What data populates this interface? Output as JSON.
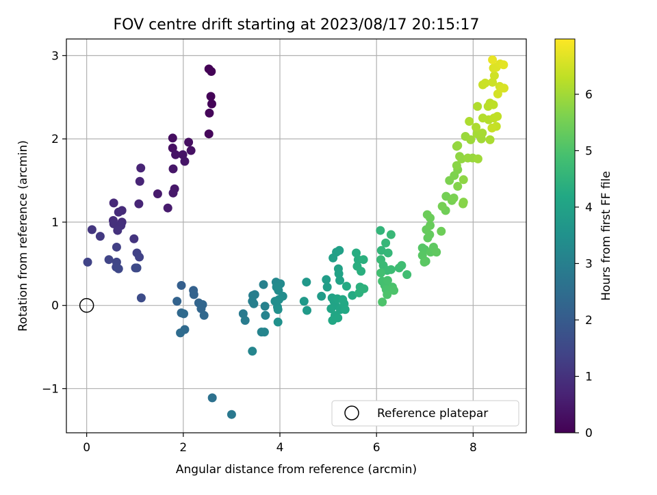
{
  "chart_data": {
    "type": "scatter",
    "title": "FOV centre drift starting at 2023/08/17 20:15:17",
    "xlabel": "Angular distance from reference (arcmin)",
    "ylabel": "Rotation from reference (arcmin)",
    "xlim": [
      -0.42,
      9.1
    ],
    "ylim": [
      -1.53,
      3.2
    ],
    "xticks": [
      0,
      2,
      4,
      6,
      8
    ],
    "yticks": [
      -1,
      0,
      1,
      2,
      3
    ],
    "xtick_labels": [
      "0",
      "2",
      "4",
      "6",
      "8"
    ],
    "ytick_labels": [
      "−1",
      "0",
      "1",
      "2",
      "3"
    ],
    "grid": true,
    "colormap": "viridis",
    "colorbar": {
      "label": "Hours from first FF file",
      "range": [
        0,
        6.98
      ],
      "ticks": [
        0,
        1,
        2,
        3,
        4,
        5,
        6
      ],
      "tick_labels": [
        "0",
        "1",
        "2",
        "3",
        "4",
        "5",
        "6"
      ]
    },
    "legend": {
      "placement": "lower-right",
      "entries": [
        "Reference platepar"
      ]
    },
    "reference_point": {
      "x": 0,
      "y": 0,
      "label": "Reference platepar"
    },
    "series": [
      {
        "points": [
          {
            "x": 2.53,
            "y": 2.84,
            "h": 0.02
          },
          {
            "x": 2.58,
            "y": 2.81,
            "h": 0.04
          },
          {
            "x": 2.57,
            "y": 2.51,
            "h": 0.06
          },
          {
            "x": 2.59,
            "y": 2.42,
            "h": 0.08
          },
          {
            "x": 2.54,
            "y": 2.31,
            "h": 0.1
          },
          {
            "x": 2.53,
            "y": 2.06,
            "h": 0.12
          },
          {
            "x": 1.78,
            "y": 2.01,
            "h": 0.25
          },
          {
            "x": 2.11,
            "y": 1.96,
            "h": 0.28
          },
          {
            "x": 1.78,
            "y": 1.89,
            "h": 0.3
          },
          {
            "x": 2.16,
            "y": 1.86,
            "h": 0.32
          },
          {
            "x": 1.99,
            "y": 1.81,
            "h": 0.35
          },
          {
            "x": 1.84,
            "y": 1.81,
            "h": 0.37
          },
          {
            "x": 2.03,
            "y": 1.73,
            "h": 0.4
          },
          {
            "x": 1.79,
            "y": 1.64,
            "h": 0.42
          },
          {
            "x": 1.82,
            "y": 1.4,
            "h": 0.45
          },
          {
            "x": 1.79,
            "y": 1.35,
            "h": 0.47
          },
          {
            "x": 1.47,
            "y": 1.34,
            "h": 0.5
          },
          {
            "x": 1.68,
            "y": 1.17,
            "h": 0.52
          },
          {
            "x": 1.12,
            "y": 1.65,
            "h": 0.7
          },
          {
            "x": 1.1,
            "y": 1.49,
            "h": 0.72
          },
          {
            "x": 1.08,
            "y": 1.22,
            "h": 0.75
          },
          {
            "x": 0.56,
            "y": 1.23,
            "h": 0.8
          },
          {
            "x": 0.73,
            "y": 1.14,
            "h": 0.85
          },
          {
            "x": 0.66,
            "y": 1.12,
            "h": 0.88
          },
          {
            "x": 0.55,
            "y": 1.02,
            "h": 0.9
          },
          {
            "x": 0.73,
            "y": 1.0,
            "h": 0.92
          },
          {
            "x": 0.56,
            "y": 0.98,
            "h": 0.95
          },
          {
            "x": 0.71,
            "y": 0.96,
            "h": 0.97
          },
          {
            "x": 0.64,
            "y": 0.9,
            "h": 1.0
          },
          {
            "x": 0.98,
            "y": 0.8,
            "h": 1.05
          },
          {
            "x": 0.11,
            "y": 0.91,
            "h": 1.1
          },
          {
            "x": 0.28,
            "y": 0.83,
            "h": 1.15
          },
          {
            "x": 0.62,
            "y": 0.7,
            "h": 1.3
          },
          {
            "x": 1.04,
            "y": 0.63,
            "h": 1.35
          },
          {
            "x": 1.09,
            "y": 0.58,
            "h": 1.38
          },
          {
            "x": 0.02,
            "y": 0.52,
            "h": 1.4
          },
          {
            "x": 0.46,
            "y": 0.55,
            "h": 1.42
          },
          {
            "x": 0.62,
            "y": 0.52,
            "h": 1.45
          },
          {
            "x": 0.61,
            "y": 0.46,
            "h": 1.48
          },
          {
            "x": 0.66,
            "y": 0.44,
            "h": 1.5
          },
          {
            "x": 1.01,
            "y": 0.45,
            "h": 1.52
          },
          {
            "x": 1.04,
            "y": 0.45,
            "h": 1.55
          },
          {
            "x": 1.13,
            "y": 0.09,
            "h": 1.6
          },
          {
            "x": 1.96,
            "y": 0.24,
            "h": 2.1
          },
          {
            "x": 2.21,
            "y": 0.18,
            "h": 2.15
          },
          {
            "x": 2.22,
            "y": 0.13,
            "h": 2.2
          },
          {
            "x": 1.87,
            "y": 0.05,
            "h": 2.2
          },
          {
            "x": 2.32,
            "y": 0.03,
            "h": 2.25
          },
          {
            "x": 2.4,
            "y": 0.01,
            "h": 2.3
          },
          {
            "x": 2.37,
            "y": -0.04,
            "h": 2.3
          },
          {
            "x": 2.43,
            "y": -0.12,
            "h": 2.35
          },
          {
            "x": 1.96,
            "y": -0.09,
            "h": 2.35
          },
          {
            "x": 2.01,
            "y": -0.1,
            "h": 2.4
          },
          {
            "x": 2.03,
            "y": -0.29,
            "h": 2.4
          },
          {
            "x": 1.94,
            "y": -0.33,
            "h": 2.45
          },
          {
            "x": 2.6,
            "y": -1.11,
            "h": 2.6
          },
          {
            "x": 3.0,
            "y": -1.31,
            "h": 2.8
          },
          {
            "x": 3.24,
            "y": -0.1,
            "h": 2.85
          },
          {
            "x": 3.28,
            "y": -0.18,
            "h": 2.9
          },
          {
            "x": 3.44,
            "y": 0.12,
            "h": 2.95
          },
          {
            "x": 3.48,
            "y": 0.13,
            "h": 2.97
          },
          {
            "x": 3.43,
            "y": 0.05,
            "h": 3.0
          },
          {
            "x": 3.46,
            "y": 0.02,
            "h": 3.0
          },
          {
            "x": 3.66,
            "y": 0.25,
            "h": 3.05
          },
          {
            "x": 3.69,
            "y": -0.01,
            "h": 3.05
          },
          {
            "x": 3.7,
            "y": -0.12,
            "h": 3.1
          },
          {
            "x": 3.62,
            "y": -0.32,
            "h": 3.1
          },
          {
            "x": 3.68,
            "y": -0.32,
            "h": 3.15
          },
          {
            "x": 3.43,
            "y": -0.55,
            "h": 3.15
          },
          {
            "x": 3.92,
            "y": 0.28,
            "h": 3.25
          },
          {
            "x": 3.97,
            "y": 0.24,
            "h": 3.28
          },
          {
            "x": 4.01,
            "y": 0.26,
            "h": 3.3
          },
          {
            "x": 3.93,
            "y": 0.22,
            "h": 3.32
          },
          {
            "x": 3.97,
            "y": 0.18,
            "h": 3.35
          },
          {
            "x": 4.06,
            "y": 0.11,
            "h": 3.35
          },
          {
            "x": 3.9,
            "y": 0.05,
            "h": 3.38
          },
          {
            "x": 3.98,
            "y": 0.07,
            "h": 3.4
          },
          {
            "x": 3.95,
            "y": -0.02,
            "h": 3.42
          },
          {
            "x": 3.96,
            "y": -0.05,
            "h": 3.45
          },
          {
            "x": 3.96,
            "y": -0.2,
            "h": 3.48
          },
          {
            "x": 4.55,
            "y": 0.28,
            "h": 3.7
          },
          {
            "x": 4.5,
            "y": 0.05,
            "h": 3.72
          },
          {
            "x": 4.56,
            "y": -0.06,
            "h": 3.75
          },
          {
            "x": 4.86,
            "y": 0.11,
            "h": 3.8
          },
          {
            "x": 4.96,
            "y": 0.31,
            "h": 3.85
          },
          {
            "x": 4.98,
            "y": 0.22,
            "h": 3.88
          },
          {
            "x": 5.1,
            "y": 0.57,
            "h": 3.9
          },
          {
            "x": 5.17,
            "y": 0.64,
            "h": 3.92
          },
          {
            "x": 5.23,
            "y": 0.66,
            "h": 3.95
          },
          {
            "x": 5.21,
            "y": 0.44,
            "h": 3.97
          },
          {
            "x": 5.22,
            "y": 0.38,
            "h": 4.0
          },
          {
            "x": 5.24,
            "y": 0.3,
            "h": 4.0
          },
          {
            "x": 5.08,
            "y": 0.09,
            "h": 4.02
          },
          {
            "x": 5.12,
            "y": 0.05,
            "h": 4.05
          },
          {
            "x": 5.15,
            "y": 0.0,
            "h": 4.05
          },
          {
            "x": 5.06,
            "y": -0.04,
            "h": 4.08
          },
          {
            "x": 5.19,
            "y": 0.08,
            "h": 4.1
          },
          {
            "x": 5.25,
            "y": -0.05,
            "h": 4.1
          },
          {
            "x": 5.14,
            "y": -0.12,
            "h": 4.12
          },
          {
            "x": 5.09,
            "y": -0.18,
            "h": 4.15
          },
          {
            "x": 5.2,
            "y": -0.15,
            "h": 4.15
          },
          {
            "x": 5.33,
            "y": 0.02,
            "h": 4.18
          },
          {
            "x": 5.35,
            "y": -0.05,
            "h": 4.2
          },
          {
            "x": 5.3,
            "y": 0.07,
            "h": 4.2
          },
          {
            "x": 5.38,
            "y": 0.23,
            "h": 4.22
          },
          {
            "x": 5.5,
            "y": 0.12,
            "h": 4.25
          },
          {
            "x": 5.58,
            "y": 0.63,
            "h": 4.3
          },
          {
            "x": 5.62,
            "y": 0.55,
            "h": 4.32
          },
          {
            "x": 5.6,
            "y": 0.47,
            "h": 4.35
          },
          {
            "x": 5.68,
            "y": 0.41,
            "h": 4.38
          },
          {
            "x": 5.73,
            "y": 0.55,
            "h": 4.4
          },
          {
            "x": 5.66,
            "y": 0.22,
            "h": 4.4
          },
          {
            "x": 5.64,
            "y": 0.15,
            "h": 4.42
          },
          {
            "x": 5.74,
            "y": 0.2,
            "h": 4.45
          },
          {
            "x": 6.08,
            "y": 0.9,
            "h": 4.55
          },
          {
            "x": 6.1,
            "y": 0.66,
            "h": 4.58
          },
          {
            "x": 6.24,
            "y": 0.63,
            "h": 4.6
          },
          {
            "x": 6.19,
            "y": 0.75,
            "h": 4.62
          },
          {
            "x": 6.3,
            "y": 0.85,
            "h": 4.65
          },
          {
            "x": 6.09,
            "y": 0.55,
            "h": 4.68
          },
          {
            "x": 6.14,
            "y": 0.48,
            "h": 4.7
          },
          {
            "x": 6.22,
            "y": 0.42,
            "h": 4.72
          },
          {
            "x": 6.3,
            "y": 0.43,
            "h": 4.75
          },
          {
            "x": 6.47,
            "y": 0.45,
            "h": 4.77
          },
          {
            "x": 6.52,
            "y": 0.48,
            "h": 4.8
          },
          {
            "x": 6.63,
            "y": 0.37,
            "h": 4.82
          },
          {
            "x": 6.09,
            "y": 0.39,
            "h": 4.85
          },
          {
            "x": 6.12,
            "y": 0.29,
            "h": 4.88
          },
          {
            "x": 6.17,
            "y": 0.24,
            "h": 4.9
          },
          {
            "x": 6.23,
            "y": 0.3,
            "h": 4.92
          },
          {
            "x": 6.2,
            "y": 0.19,
            "h": 4.95
          },
          {
            "x": 6.33,
            "y": 0.22,
            "h": 4.97
          },
          {
            "x": 6.36,
            "y": 0.18,
            "h": 5.0
          },
          {
            "x": 6.22,
            "y": 0.13,
            "h": 5.0
          },
          {
            "x": 6.12,
            "y": 0.04,
            "h": 5.0
          },
          {
            "x": 6.95,
            "y": 0.69,
            "h": 5.1
          },
          {
            "x": 7.0,
            "y": 0.67,
            "h": 5.12
          },
          {
            "x": 6.95,
            "y": 0.6,
            "h": 5.15
          },
          {
            "x": 7.02,
            "y": 0.53,
            "h": 5.15
          },
          {
            "x": 6.99,
            "y": 0.52,
            "h": 5.18
          },
          {
            "x": 7.12,
            "y": 0.64,
            "h": 5.2
          },
          {
            "x": 7.18,
            "y": 0.7,
            "h": 5.22
          },
          {
            "x": 7.24,
            "y": 0.64,
            "h": 5.25
          },
          {
            "x": 7.06,
            "y": 0.81,
            "h": 5.28
          },
          {
            "x": 7.1,
            "y": 0.85,
            "h": 5.3
          },
          {
            "x": 7.03,
            "y": 0.91,
            "h": 5.32
          },
          {
            "x": 7.11,
            "y": 0.96,
            "h": 5.35
          },
          {
            "x": 7.11,
            "y": 1.05,
            "h": 5.38
          },
          {
            "x": 7.05,
            "y": 1.09,
            "h": 5.4
          },
          {
            "x": 7.34,
            "y": 0.89,
            "h": 5.42
          },
          {
            "x": 7.43,
            "y": 1.14,
            "h": 5.45
          },
          {
            "x": 7.44,
            "y": 1.31,
            "h": 5.5
          },
          {
            "x": 7.36,
            "y": 1.19,
            "h": 5.52
          },
          {
            "x": 7.56,
            "y": 1.26,
            "h": 5.55
          },
          {
            "x": 7.6,
            "y": 1.29,
            "h": 5.58
          },
          {
            "x": 7.51,
            "y": 1.5,
            "h": 5.6
          },
          {
            "x": 7.61,
            "y": 1.56,
            "h": 5.62
          },
          {
            "x": 7.68,
            "y": 1.63,
            "h": 5.65
          },
          {
            "x": 7.68,
            "y": 1.43,
            "h": 5.68
          },
          {
            "x": 7.79,
            "y": 1.22,
            "h": 5.7
          },
          {
            "x": 7.8,
            "y": 1.24,
            "h": 5.72
          },
          {
            "x": 7.66,
            "y": 1.68,
            "h": 5.75
          },
          {
            "x": 7.8,
            "y": 1.51,
            "h": 5.78
          },
          {
            "x": 7.72,
            "y": 1.79,
            "h": 5.8
          },
          {
            "x": 7.76,
            "y": 1.76,
            "h": 5.82
          },
          {
            "x": 7.66,
            "y": 1.91,
            "h": 5.85
          },
          {
            "x": 7.68,
            "y": 1.92,
            "h": 5.87
          },
          {
            "x": 7.89,
            "y": 1.77,
            "h": 5.9
          },
          {
            "x": 7.99,
            "y": 1.77,
            "h": 5.9
          },
          {
            "x": 7.84,
            "y": 2.03,
            "h": 5.92
          },
          {
            "x": 7.95,
            "y": 1.99,
            "h": 5.95
          },
          {
            "x": 8.1,
            "y": 1.76,
            "h": 5.97
          },
          {
            "x": 8.17,
            "y": 2.0,
            "h": 6.0
          },
          {
            "x": 8.08,
            "y": 2.06,
            "h": 6.02
          },
          {
            "x": 8.19,
            "y": 2.07,
            "h": 6.05
          },
          {
            "x": 8.35,
            "y": 1.99,
            "h": 6.08
          },
          {
            "x": 8.06,
            "y": 2.14,
            "h": 6.1
          },
          {
            "x": 7.92,
            "y": 2.21,
            "h": 6.12
          },
          {
            "x": 8.09,
            "y": 2.39,
            "h": 6.15
          },
          {
            "x": 8.2,
            "y": 2.25,
            "h": 6.18
          },
          {
            "x": 8.32,
            "y": 2.23,
            "h": 6.2
          },
          {
            "x": 8.31,
            "y": 2.39,
            "h": 6.22
          },
          {
            "x": 8.35,
            "y": 2.43,
            "h": 6.25
          },
          {
            "x": 8.42,
            "y": 2.41,
            "h": 6.28
          },
          {
            "x": 8.43,
            "y": 2.25,
            "h": 6.3
          },
          {
            "x": 8.5,
            "y": 2.27,
            "h": 6.32
          },
          {
            "x": 8.48,
            "y": 2.15,
            "h": 6.35
          },
          {
            "x": 8.39,
            "y": 2.13,
            "h": 6.38
          },
          {
            "x": 8.2,
            "y": 2.65,
            "h": 6.4
          },
          {
            "x": 8.25,
            "y": 2.67,
            "h": 6.42
          },
          {
            "x": 8.4,
            "y": 2.68,
            "h": 6.45
          },
          {
            "x": 8.44,
            "y": 2.76,
            "h": 6.48
          },
          {
            "x": 8.55,
            "y": 2.63,
            "h": 6.5
          },
          {
            "x": 8.51,
            "y": 2.54,
            "h": 6.52
          },
          {
            "x": 8.59,
            "y": 2.61,
            "h": 6.55
          },
          {
            "x": 8.64,
            "y": 2.61,
            "h": 6.58
          },
          {
            "x": 8.42,
            "y": 2.85,
            "h": 6.6
          },
          {
            "x": 8.48,
            "y": 2.86,
            "h": 6.62
          },
          {
            "x": 8.56,
            "y": 2.9,
            "h": 6.65
          },
          {
            "x": 8.63,
            "y": 2.89,
            "h": 6.7
          },
          {
            "x": 8.4,
            "y": 2.95,
            "h": 6.75
          }
        ]
      }
    ]
  }
}
